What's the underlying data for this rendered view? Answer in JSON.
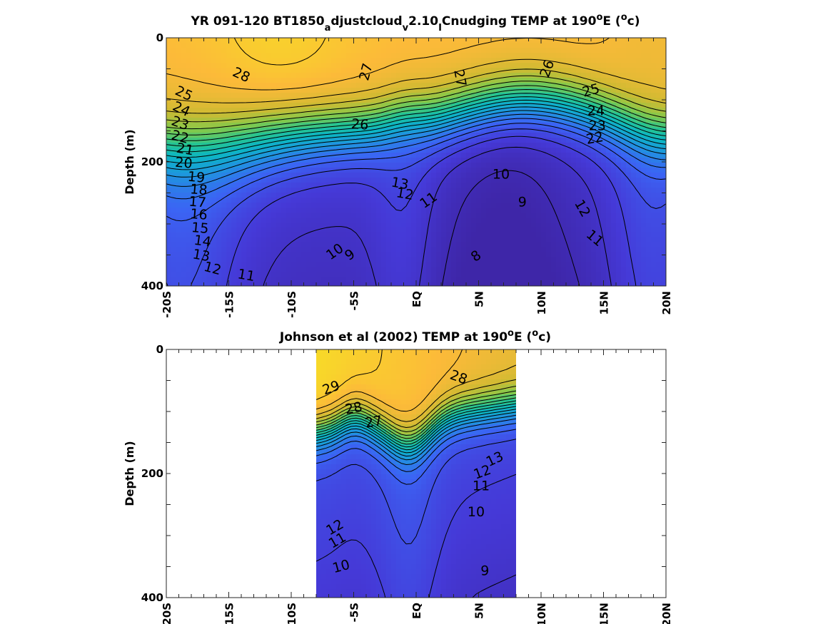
{
  "chart_data": [
    {
      "type": "contour",
      "title": {
        "main": "YR 091-120 BT1850",
        "sub1": "a",
        "mid1": "djustcloud",
        "sub2": "v",
        "mid2": "2.10",
        "sub3": "I",
        "mid3": "Cnudging TEMP at 190",
        "sup1": "o",
        "mid4": "E (",
        "sup2": "o",
        "end": "c)"
      },
      "ylabel": "Depth (m)",
      "xticks": [
        "-20S",
        "-15S",
        "-10S",
        "-5S",
        "EQ",
        "5N",
        "10N",
        "15N",
        "20N"
      ],
      "yticks": [
        "0",
        "200",
        "400"
      ],
      "xlim": [
        -20,
        20
      ],
      "ylim": [
        0,
        400
      ],
      "x_coverage": [
        -20,
        20
      ],
      "colormap": "parula",
      "contour_interval": 1,
      "contour_labels": [
        {
          "text": "28",
          "lat": -14,
          "depth": 60,
          "rot": 25
        },
        {
          "text": "27",
          "lat": -4,
          "depth": 55,
          "rot": -75
        },
        {
          "text": "27",
          "lat": 3.5,
          "depth": 65,
          "rot": 80
        },
        {
          "text": "26",
          "lat": 10.5,
          "depth": 50,
          "rot": -70
        },
        {
          "text": "25",
          "lat": -18.6,
          "depth": 90,
          "rot": 25
        },
        {
          "text": "25",
          "lat": 14,
          "depth": 85,
          "rot": -15
        },
        {
          "text": "24",
          "lat": -18.8,
          "depth": 115,
          "rot": 25
        },
        {
          "text": "24",
          "lat": 14.4,
          "depth": 118,
          "rot": 0
        },
        {
          "text": "23",
          "lat": -18.9,
          "depth": 138,
          "rot": 20
        },
        {
          "text": "23",
          "lat": 14.5,
          "depth": 142,
          "rot": 0
        },
        {
          "text": "22",
          "lat": -18.9,
          "depth": 160,
          "rot": 15
        },
        {
          "text": "22",
          "lat": 14.3,
          "depth": 162,
          "rot": -10
        },
        {
          "text": "21",
          "lat": -18.5,
          "depth": 180,
          "rot": 10
        },
        {
          "text": "20",
          "lat": -18.6,
          "depth": 202,
          "rot": 5
        },
        {
          "text": "19",
          "lat": -17.6,
          "depth": 225,
          "rot": 5
        },
        {
          "text": "18",
          "lat": -17.4,
          "depth": 245,
          "rot": 5
        },
        {
          "text": "17",
          "lat": -17.5,
          "depth": 265,
          "rot": 5
        },
        {
          "text": "16",
          "lat": -17.4,
          "depth": 285,
          "rot": 5
        },
        {
          "text": "15",
          "lat": -17.3,
          "depth": 307,
          "rot": 5
        },
        {
          "text": "14",
          "lat": -17.1,
          "depth": 328,
          "rot": 8
        },
        {
          "text": "13",
          "lat": -17.2,
          "depth": 351,
          "rot": 10
        },
        {
          "text": "12",
          "lat": -16.3,
          "depth": 372,
          "rot": 15
        },
        {
          "text": "11",
          "lat": -13.6,
          "depth": 383,
          "rot": 10
        },
        {
          "text": "26",
          "lat": -4.5,
          "depth": 140,
          "rot": 5
        },
        {
          "text": "13",
          "lat": -1.3,
          "depth": 235,
          "rot": 10
        },
        {
          "text": "12",
          "lat": -0.9,
          "depth": 252,
          "rot": 10
        },
        {
          "text": "11",
          "lat": 1,
          "depth": 262,
          "rot": -35
        },
        {
          "text": "10",
          "lat": 6.8,
          "depth": 220,
          "rot": 0
        },
        {
          "text": "9",
          "lat": 8.5,
          "depth": 265,
          "rot": 0
        },
        {
          "text": "10",
          "lat": -6.5,
          "depth": 345,
          "rot": -35
        },
        {
          "text": "9",
          "lat": -5.3,
          "depth": 350,
          "rot": -35
        },
        {
          "text": "8",
          "lat": 4.8,
          "depth": 352,
          "rot": -35
        },
        {
          "text": "11",
          "lat": 14.3,
          "depth": 323,
          "rot": 40
        },
        {
          "text": "12",
          "lat": 13.3,
          "depth": 275,
          "rot": 60
        }
      ]
    },
    {
      "type": "contour",
      "title": {
        "main": "Johnson et al (2002) TEMP at 190",
        "sup1": "o",
        "mid1": "E (",
        "sup2": "o",
        "end": "c)"
      },
      "ylabel": "Depth (m)",
      "xticks": [
        "-20S",
        "-15S",
        "-10S",
        "-5S",
        "EQ",
        "5N",
        "10N",
        "15N",
        "20N"
      ],
      "yticks": [
        "0",
        "200",
        "400"
      ],
      "xlim": [
        -20,
        20
      ],
      "ylim": [
        0,
        400
      ],
      "x_coverage": [
        -8,
        8
      ],
      "colormap": "parula",
      "contour_interval": 1,
      "contour_labels": [
        {
          "text": "29",
          "lat": -6.8,
          "depth": 62,
          "rot": -20
        },
        {
          "text": "28",
          "lat": -5,
          "depth": 95,
          "rot": -10
        },
        {
          "text": "27",
          "lat": -3.4,
          "depth": 117,
          "rot": -10
        },
        {
          "text": "28",
          "lat": 3.4,
          "depth": 45,
          "rot": 20
        },
        {
          "text": "12",
          "lat": -6.5,
          "depth": 287,
          "rot": -30
        },
        {
          "text": "11",
          "lat": -6.3,
          "depth": 308,
          "rot": -30
        },
        {
          "text": "10",
          "lat": -6.0,
          "depth": 350,
          "rot": -15
        },
        {
          "text": "12",
          "lat": 5.3,
          "depth": 198,
          "rot": -20
        },
        {
          "text": "13",
          "lat": 6.3,
          "depth": 177,
          "rot": -25
        },
        {
          "text": "11",
          "lat": 5.2,
          "depth": 220,
          "rot": 0
        },
        {
          "text": "10",
          "lat": 4.8,
          "depth": 262,
          "rot": 0
        },
        {
          "text": "9",
          "lat": 5.5,
          "depth": 357,
          "rot": 0
        }
      ]
    }
  ]
}
